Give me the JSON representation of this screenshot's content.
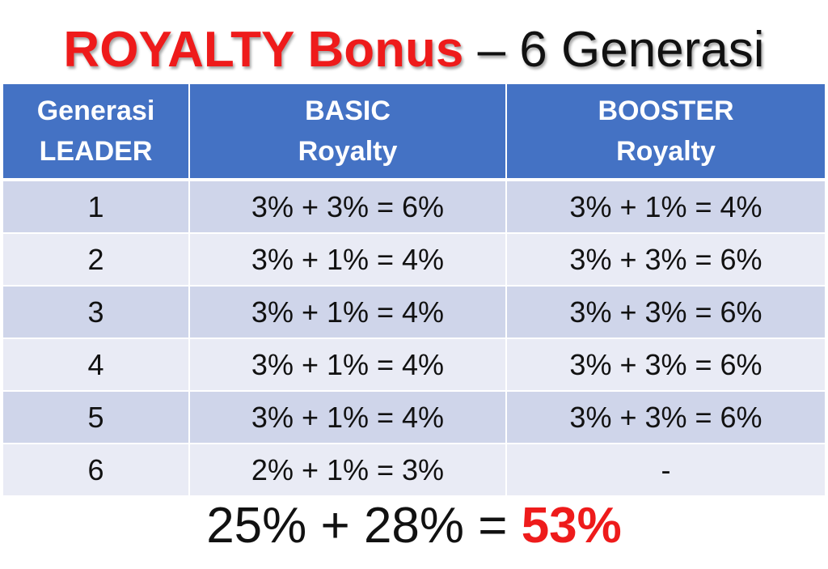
{
  "title": {
    "highlight": "ROYALTY Bonus",
    "rest": " – 6 Generasi"
  },
  "table": {
    "headers": [
      {
        "line1": "Generasi",
        "line2": "LEADER"
      },
      {
        "line1": "BASIC",
        "line2": "Royalty"
      },
      {
        "line1": "BOOSTER",
        "line2": "Royalty"
      }
    ],
    "rows": [
      {
        "generation": "1",
        "basic": "3% + 3% = 6%",
        "booster": "3% + 1% = 4%"
      },
      {
        "generation": "2",
        "basic": "3% + 1% = 4%",
        "booster": "3% + 3% = 6%"
      },
      {
        "generation": "3",
        "basic": "3% + 1% = 4%",
        "booster": "3% + 3% = 6%"
      },
      {
        "generation": "4",
        "basic": "3% + 1% = 4%",
        "booster": "3% + 3% = 6%"
      },
      {
        "generation": "5",
        "basic": "3% + 1% = 4%",
        "booster": "3% + 3% = 6%"
      },
      {
        "generation": "6",
        "basic": "2% + 1% = 3%",
        "booster": "-"
      }
    ]
  },
  "total": {
    "expression": "25% + 28% = ",
    "result": "53%"
  },
  "colors": {
    "title_red": "#ee1b1b",
    "header_blue": "#4472c4",
    "row_dark": "#cfd5ea",
    "row_light": "#e9ebf5"
  }
}
